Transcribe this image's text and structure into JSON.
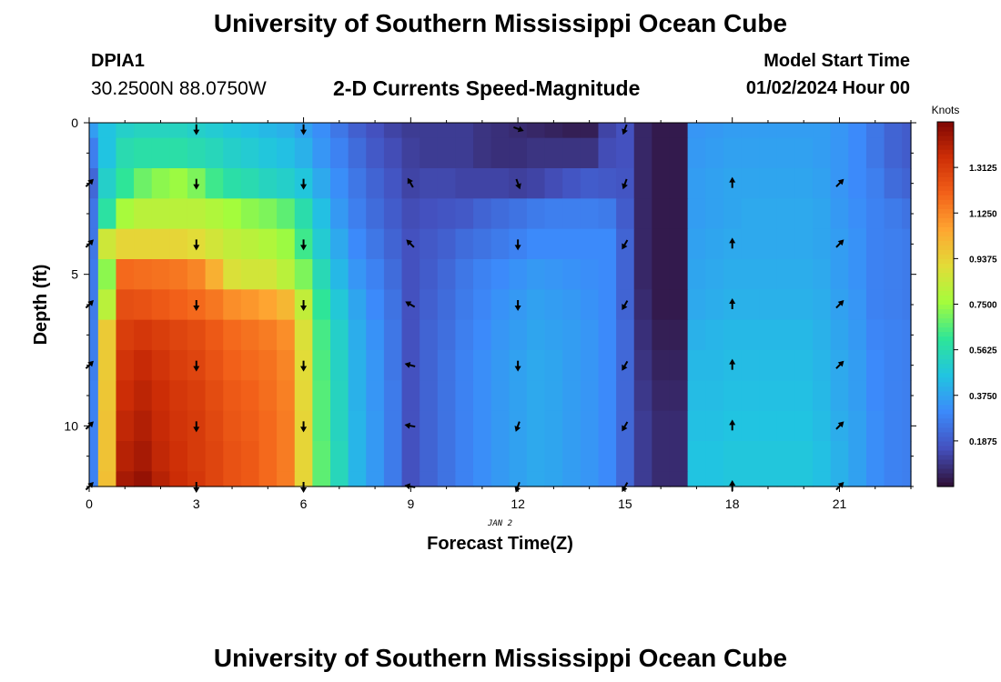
{
  "header": {
    "title": "University of Southern Mississippi Ocean Cube",
    "station": "DPIA1",
    "coords": "30.2500N  88.0750W",
    "subtitle": "2-D Currents Speed-Magnitude",
    "start_label": "Model Start Time",
    "start_value": "01/02/2024 Hour 00"
  },
  "footer": {
    "title": "University of Southern Mississippi Ocean Cube"
  },
  "chart_data": {
    "type": "heatmap",
    "title": "2-D Currents Speed-Magnitude",
    "xlabel": "Forecast Time(Z)",
    "ylabel": "Depth (ft)",
    "date_label": "JAN 2",
    "xlim": [
      0,
      23
    ],
    "ylim": [
      12,
      0
    ],
    "x_ticks": [
      0,
      3,
      6,
      9,
      12,
      15,
      18,
      21
    ],
    "y_ticks": [
      0,
      5,
      10
    ],
    "time_columns": [
      0,
      0.5,
      1,
      1.5,
      2,
      2.5,
      3,
      3.5,
      4,
      4.5,
      5,
      5.5,
      6,
      6.5,
      7,
      7.5,
      8,
      8.5,
      9,
      9.5,
      10,
      10.5,
      11,
      11.5,
      12,
      12.5,
      13,
      13.5,
      14,
      14.5,
      15,
      15.5,
      16,
      16.5,
      17,
      17.5,
      18,
      18.5,
      19,
      19.5,
      20,
      20.5,
      21,
      21.5,
      22,
      22.5,
      23
    ],
    "depth_rows": [
      0,
      1,
      2,
      3,
      4,
      5,
      6,
      7,
      8,
      9,
      10,
      11,
      12
    ],
    "speed_knots": [
      [
        0.35,
        0.45,
        0.5,
        0.52,
        0.52,
        0.52,
        0.5,
        0.48,
        0.46,
        0.44,
        0.42,
        0.4,
        0.36,
        0.31,
        0.25,
        0.19,
        0.15,
        0.12,
        0.1,
        0.1,
        0.1,
        0.1,
        0.08,
        0.07,
        0.06,
        0.05,
        0.04,
        0.03,
        0.03,
        0.12,
        0.15,
        0.05,
        0.02,
        0.02,
        0.33,
        0.34,
        0.35,
        0.35,
        0.35,
        0.35,
        0.35,
        0.35,
        0.33,
        0.3,
        0.25,
        0.2,
        0.18
      ],
      [
        0.27,
        0.45,
        0.55,
        0.57,
        0.57,
        0.57,
        0.55,
        0.53,
        0.5,
        0.48,
        0.46,
        0.44,
        0.4,
        0.33,
        0.28,
        0.22,
        0.17,
        0.14,
        0.11,
        0.1,
        0.1,
        0.1,
        0.08,
        0.07,
        0.07,
        0.08,
        0.08,
        0.08,
        0.08,
        0.14,
        0.15,
        0.05,
        0.02,
        0.02,
        0.34,
        0.35,
        0.36,
        0.36,
        0.36,
        0.36,
        0.36,
        0.35,
        0.33,
        0.3,
        0.25,
        0.2,
        0.18
      ],
      [
        0.21,
        0.5,
        0.6,
        0.68,
        0.72,
        0.74,
        0.7,
        0.62,
        0.57,
        0.55,
        0.52,
        0.5,
        0.46,
        0.38,
        0.31,
        0.25,
        0.2,
        0.16,
        0.12,
        0.13,
        0.13,
        0.12,
        0.12,
        0.12,
        0.11,
        0.12,
        0.14,
        0.16,
        0.18,
        0.17,
        0.16,
        0.05,
        0.02,
        0.02,
        0.35,
        0.36,
        0.37,
        0.37,
        0.37,
        0.37,
        0.37,
        0.36,
        0.33,
        0.3,
        0.27,
        0.22,
        0.2
      ],
      [
        0.25,
        0.58,
        0.76,
        0.8,
        0.8,
        0.8,
        0.8,
        0.78,
        0.75,
        0.72,
        0.7,
        0.66,
        0.56,
        0.44,
        0.34,
        0.27,
        0.22,
        0.18,
        0.14,
        0.15,
        0.16,
        0.17,
        0.2,
        0.22,
        0.24,
        0.26,
        0.27,
        0.27,
        0.27,
        0.26,
        0.18,
        0.05,
        0.02,
        0.02,
        0.35,
        0.36,
        0.37,
        0.38,
        0.38,
        0.38,
        0.38,
        0.37,
        0.34,
        0.31,
        0.28,
        0.26,
        0.24
      ],
      [
        0.25,
        0.85,
        0.92,
        0.92,
        0.92,
        0.92,
        0.9,
        0.86,
        0.82,
        0.8,
        0.78,
        0.74,
        0.62,
        0.48,
        0.38,
        0.3,
        0.25,
        0.2,
        0.15,
        0.17,
        0.19,
        0.22,
        0.24,
        0.26,
        0.28,
        0.3,
        0.3,
        0.3,
        0.3,
        0.3,
        0.2,
        0.05,
        0.02,
        0.02,
        0.36,
        0.37,
        0.38,
        0.38,
        0.38,
        0.38,
        0.38,
        0.37,
        0.35,
        0.32,
        0.28,
        0.27,
        0.26
      ],
      [
        0.26,
        0.72,
        1.18,
        1.17,
        1.16,
        1.15,
        1.12,
        1.02,
        0.88,
        0.86,
        0.86,
        0.8,
        0.7,
        0.54,
        0.42,
        0.33,
        0.28,
        0.22,
        0.15,
        0.18,
        0.21,
        0.25,
        0.28,
        0.3,
        0.32,
        0.34,
        0.33,
        0.32,
        0.31,
        0.3,
        0.2,
        0.05,
        0.02,
        0.02,
        0.37,
        0.38,
        0.39,
        0.39,
        0.39,
        0.39,
        0.39,
        0.38,
        0.35,
        0.32,
        0.28,
        0.27,
        0.26
      ],
      [
        0.26,
        0.8,
        1.25,
        1.24,
        1.22,
        1.2,
        1.18,
        1.15,
        1.1,
        1.08,
        1.05,
        1.0,
        0.82,
        0.6,
        0.47,
        0.37,
        0.3,
        0.24,
        0.15,
        0.19,
        0.22,
        0.26,
        0.29,
        0.32,
        0.34,
        0.36,
        0.35,
        0.34,
        0.32,
        0.3,
        0.2,
        0.06,
        0.02,
        0.02,
        0.38,
        0.39,
        0.4,
        0.4,
        0.4,
        0.4,
        0.4,
        0.39,
        0.36,
        0.33,
        0.28,
        0.27,
        0.26
      ],
      [
        0.27,
        0.95,
        1.3,
        1.32,
        1.3,
        1.28,
        1.26,
        1.22,
        1.18,
        1.16,
        1.14,
        1.1,
        0.88,
        0.63,
        0.5,
        0.39,
        0.32,
        0.25,
        0.15,
        0.2,
        0.23,
        0.27,
        0.3,
        0.33,
        0.35,
        0.37,
        0.36,
        0.35,
        0.33,
        0.3,
        0.21,
        0.07,
        0.03,
        0.03,
        0.4,
        0.41,
        0.42,
        0.42,
        0.42,
        0.42,
        0.42,
        0.4,
        0.37,
        0.34,
        0.29,
        0.28,
        0.27
      ],
      [
        0.27,
        0.95,
        1.33,
        1.36,
        1.33,
        1.3,
        1.28,
        1.24,
        1.2,
        1.18,
        1.16,
        1.12,
        0.9,
        0.64,
        0.51,
        0.4,
        0.33,
        0.25,
        0.15,
        0.2,
        0.24,
        0.28,
        0.31,
        0.34,
        0.36,
        0.38,
        0.37,
        0.35,
        0.33,
        0.3,
        0.21,
        0.08,
        0.04,
        0.04,
        0.42,
        0.42,
        0.43,
        0.43,
        0.43,
        0.43,
        0.43,
        0.41,
        0.38,
        0.35,
        0.3,
        0.28,
        0.27
      ],
      [
        0.28,
        0.96,
        1.35,
        1.38,
        1.35,
        1.32,
        1.3,
        1.26,
        1.22,
        1.2,
        1.17,
        1.13,
        0.91,
        0.65,
        0.52,
        0.4,
        0.33,
        0.26,
        0.15,
        0.2,
        0.24,
        0.28,
        0.31,
        0.34,
        0.36,
        0.38,
        0.37,
        0.35,
        0.33,
        0.3,
        0.21,
        0.09,
        0.05,
        0.05,
        0.43,
        0.43,
        0.44,
        0.44,
        0.44,
        0.44,
        0.44,
        0.42,
        0.38,
        0.35,
        0.3,
        0.28,
        0.27
      ],
      [
        0.28,
        0.97,
        1.37,
        1.4,
        1.36,
        1.33,
        1.31,
        1.27,
        1.23,
        1.21,
        1.18,
        1.14,
        0.92,
        0.65,
        0.52,
        0.41,
        0.34,
        0.26,
        0.15,
        0.2,
        0.24,
        0.28,
        0.31,
        0.34,
        0.36,
        0.38,
        0.37,
        0.35,
        0.33,
        0.3,
        0.21,
        0.1,
        0.06,
        0.06,
        0.44,
        0.44,
        0.45,
        0.45,
        0.45,
        0.45,
        0.45,
        0.43,
        0.39,
        0.36,
        0.31,
        0.28,
        0.27
      ],
      [
        0.28,
        0.97,
        1.39,
        1.42,
        1.37,
        1.34,
        1.31,
        1.28,
        1.24,
        1.22,
        1.18,
        1.14,
        0.92,
        0.66,
        0.53,
        0.41,
        0.34,
        0.26,
        0.15,
        0.2,
        0.24,
        0.28,
        0.31,
        0.34,
        0.36,
        0.38,
        0.37,
        0.35,
        0.33,
        0.3,
        0.21,
        0.1,
        0.06,
        0.06,
        0.45,
        0.45,
        0.46,
        0.46,
        0.46,
        0.46,
        0.46,
        0.44,
        0.4,
        0.36,
        0.31,
        0.28,
        0.27
      ],
      [
        0.28,
        0.98,
        1.42,
        1.45,
        1.39,
        1.35,
        1.32,
        1.28,
        1.24,
        1.22,
        1.18,
        1.14,
        0.92,
        0.66,
        0.53,
        0.41,
        0.34,
        0.26,
        0.15,
        0.2,
        0.24,
        0.28,
        0.31,
        0.34,
        0.36,
        0.38,
        0.37,
        0.35,
        0.33,
        0.3,
        0.21,
        0.1,
        0.06,
        0.06,
        0.45,
        0.45,
        0.46,
        0.46,
        0.46,
        0.46,
        0.46,
        0.44,
        0.4,
        0.36,
        0.31,
        0.28,
        0.27
      ]
    ],
    "vector_times": [
      0,
      3,
      6,
      9,
      12,
      15,
      18,
      21
    ],
    "vector_depths": [
      2,
      4,
      6,
      8,
      10,
      12
    ],
    "vector_directions_deg": [
      [
        45,
        180,
        180,
        330,
        160,
        200,
        0,
        45
      ],
      [
        45,
        180,
        180,
        315,
        180,
        210,
        0,
        45
      ],
      [
        45,
        180,
        180,
        300,
        180,
        210,
        0,
        45
      ],
      [
        45,
        180,
        180,
        285,
        180,
        210,
        0,
        45
      ],
      [
        45,
        180,
        180,
        280,
        200,
        210,
        0,
        45
      ],
      [
        45,
        180,
        180,
        280,
        200,
        210,
        0,
        45
      ]
    ],
    "top_vector_directions_deg": [
      180,
      180,
      110,
      200
    ],
    "top_vector_times": [
      3,
      6,
      12,
      15
    ],
    "colorbar": {
      "label": "Knots",
      "min": 0,
      "max": 1.5,
      "ticks": [
        "0.1875",
        "0.3750",
        "0.5625",
        "0.7500",
        "0.9375",
        "1.1250",
        "1.3125"
      ],
      "tick_values": [
        0.1875,
        0.375,
        0.5625,
        0.75,
        0.9375,
        1.125,
        1.3125
      ],
      "colormap": "turbo"
    }
  }
}
